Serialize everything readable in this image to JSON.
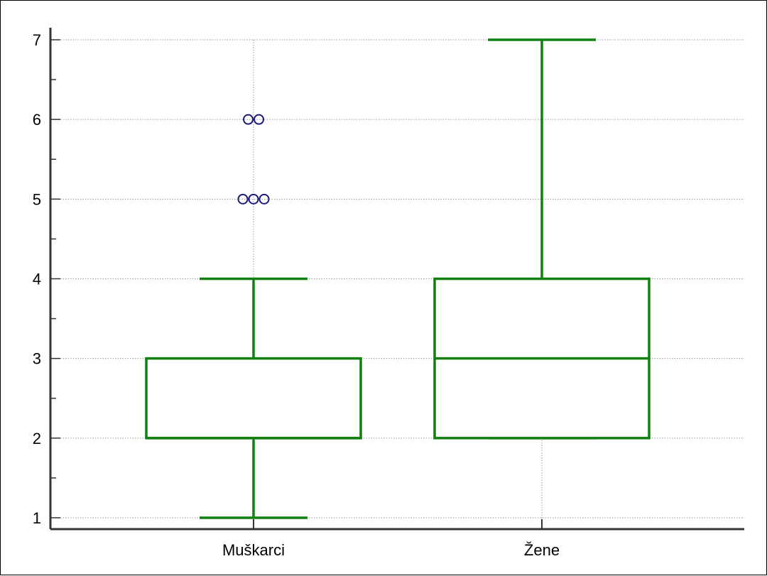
{
  "chart_data": {
    "type": "box",
    "title": "",
    "xlabel": "",
    "ylabel": "",
    "ylim": [
      1,
      7
    ],
    "yticks": [
      1,
      2,
      3,
      4,
      5,
      6,
      7
    ],
    "grid": true,
    "categories": [
      "Muškarci",
      "Žene"
    ],
    "boxes": [
      {
        "category": "Muškarci",
        "whisker_low": 1,
        "q1": 2,
        "median": 2,
        "q3": 3,
        "whisker_high": 4,
        "outliers": [
          5,
          5,
          5,
          6,
          6
        ]
      },
      {
        "category": "Žene",
        "whisker_low": 2,
        "q1": 2,
        "median": 3,
        "q3": 4,
        "whisker_high": 7,
        "outliers": []
      }
    ],
    "colors": {
      "box": "#108010",
      "outlier": "#1a1a80",
      "grid": "#9a9a9a",
      "axis": "#333333"
    }
  }
}
